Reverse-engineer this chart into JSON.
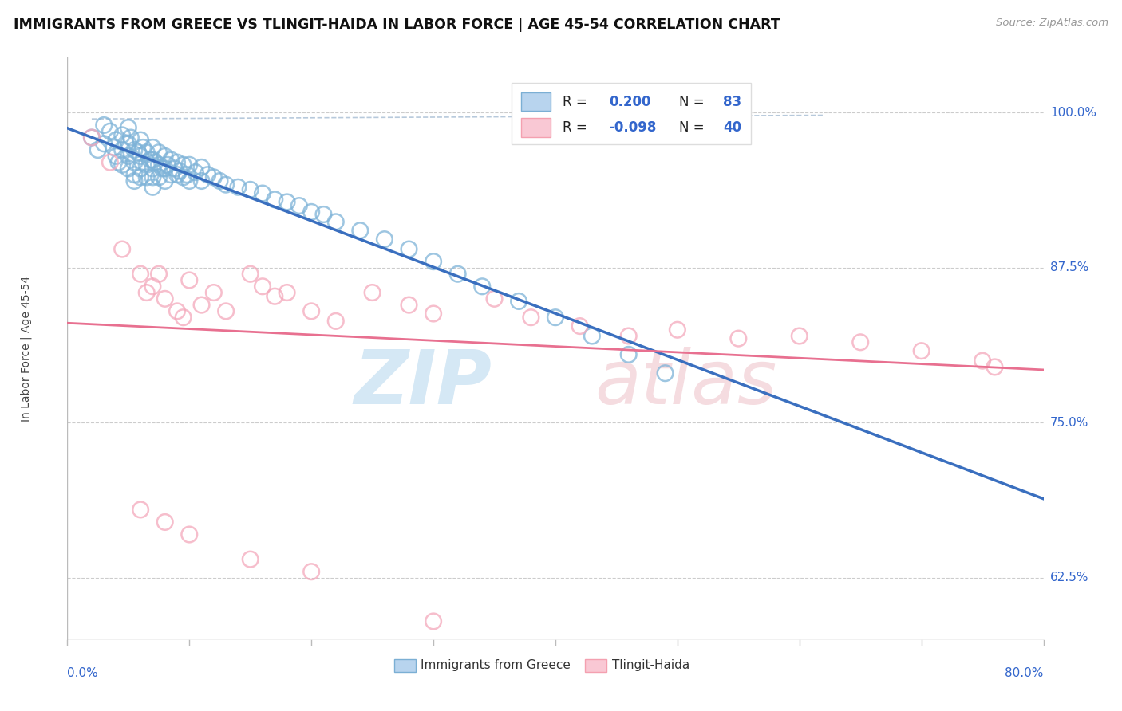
{
  "title": "IMMIGRANTS FROM GREECE VS TLINGIT-HAIDA IN LABOR FORCE | AGE 45-54 CORRELATION CHART",
  "source": "Source: ZipAtlas.com",
  "ylabel": "In Labor Force | Age 45-54",
  "ytick_labels": [
    "62.5%",
    "75.0%",
    "87.5%",
    "100.0%"
  ],
  "ytick_values": [
    0.625,
    0.75,
    0.875,
    1.0
  ],
  "xlim": [
    0.0,
    0.8
  ],
  "ylim": [
    0.575,
    1.045
  ],
  "legend_label1": "Immigrants from Greece",
  "legend_label2": "Tlingit-Haida",
  "blue_scatter_color": "#7EB3D8",
  "pink_scatter_color": "#F4A8BB",
  "blue_line_color": "#3A6FBF",
  "pink_line_color": "#E87090",
  "gray_dash_color": "#B0C4D8",
  "watermark_zip_color": "#D5E8F5",
  "watermark_atlas_color": "#F5DCE0",
  "greece_x": [
    0.02,
    0.025,
    0.03,
    0.03,
    0.035,
    0.038,
    0.04,
    0.04,
    0.042,
    0.045,
    0.045,
    0.045,
    0.048,
    0.05,
    0.05,
    0.05,
    0.05,
    0.052,
    0.055,
    0.055,
    0.055,
    0.055,
    0.058,
    0.06,
    0.06,
    0.06,
    0.06,
    0.062,
    0.065,
    0.065,
    0.065,
    0.068,
    0.07,
    0.07,
    0.07,
    0.07,
    0.07,
    0.072,
    0.075,
    0.075,
    0.075,
    0.078,
    0.08,
    0.08,
    0.08,
    0.082,
    0.085,
    0.085,
    0.088,
    0.09,
    0.09,
    0.092,
    0.095,
    0.095,
    0.098,
    0.1,
    0.1,
    0.105,
    0.11,
    0.11,
    0.115,
    0.12,
    0.125,
    0.13,
    0.14,
    0.15,
    0.16,
    0.17,
    0.18,
    0.19,
    0.2,
    0.21,
    0.22,
    0.24,
    0.26,
    0.28,
    0.3,
    0.32,
    0.34,
    0.37,
    0.4,
    0.43,
    0.46,
    0.49
  ],
  "greece_y": [
    0.98,
    0.97,
    0.99,
    0.975,
    0.985,
    0.972,
    0.978,
    0.965,
    0.96,
    0.982,
    0.97,
    0.958,
    0.975,
    0.988,
    0.975,
    0.965,
    0.955,
    0.98,
    0.97,
    0.96,
    0.95,
    0.945,
    0.968,
    0.978,
    0.965,
    0.955,
    0.948,
    0.972,
    0.968,
    0.958,
    0.948,
    0.962,
    0.972,
    0.962,
    0.955,
    0.948,
    0.94,
    0.96,
    0.968,
    0.958,
    0.948,
    0.955,
    0.965,
    0.955,
    0.945,
    0.958,
    0.962,
    0.95,
    0.955,
    0.96,
    0.95,
    0.953,
    0.958,
    0.948,
    0.95,
    0.958,
    0.945,
    0.952,
    0.956,
    0.945,
    0.95,
    0.948,
    0.945,
    0.942,
    0.94,
    0.938,
    0.935,
    0.93,
    0.928,
    0.925,
    0.92,
    0.918,
    0.912,
    0.905,
    0.898,
    0.89,
    0.88,
    0.87,
    0.86,
    0.848,
    0.835,
    0.82,
    0.805,
    0.79
  ],
  "tlingit_x": [
    0.02,
    0.035,
    0.045,
    0.06,
    0.065,
    0.07,
    0.075,
    0.08,
    0.09,
    0.095,
    0.1,
    0.11,
    0.12,
    0.13,
    0.15,
    0.16,
    0.17,
    0.18,
    0.2,
    0.22,
    0.25,
    0.28,
    0.3,
    0.35,
    0.38,
    0.42,
    0.46,
    0.5,
    0.55,
    0.6,
    0.65,
    0.7,
    0.75,
    0.76,
    0.06,
    0.08,
    0.1,
    0.15,
    0.2,
    0.3
  ],
  "tlingit_y": [
    0.98,
    0.96,
    0.89,
    0.87,
    0.855,
    0.86,
    0.87,
    0.85,
    0.84,
    0.835,
    0.865,
    0.845,
    0.855,
    0.84,
    0.87,
    0.86,
    0.852,
    0.855,
    0.84,
    0.832,
    0.855,
    0.845,
    0.838,
    0.85,
    0.835,
    0.828,
    0.82,
    0.825,
    0.818,
    0.82,
    0.815,
    0.808,
    0.8,
    0.795,
    0.68,
    0.67,
    0.66,
    0.64,
    0.63,
    0.59
  ]
}
